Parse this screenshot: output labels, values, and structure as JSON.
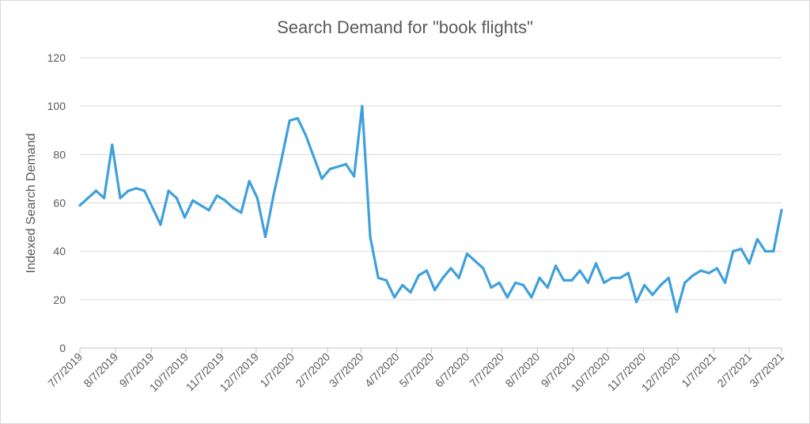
{
  "chart_data": {
    "type": "line",
    "title": "Search Demand for \"book flights\"",
    "xlabel": "",
    "ylabel": "Indexed Search Demand",
    "ylim": [
      0,
      120
    ],
    "yticks": [
      0,
      20,
      40,
      60,
      80,
      100,
      120
    ],
    "grid": true,
    "legend": "none",
    "x_tick_labels": [
      "7/7/2019",
      "8/7/2019",
      "9/7/2019",
      "10/7/2019",
      "11/7/2019",
      "12/7/2019",
      "1/7/2020",
      "2/7/2020",
      "3/7/2020",
      "4/7/2020",
      "5/7/2020",
      "6/7/2020",
      "7/7/2020",
      "8/7/2020",
      "9/7/2020",
      "10/7/2020",
      "11/7/2020",
      "12/7/2020",
      "1/7/2021",
      "2/7/2021",
      "3/7/2021"
    ],
    "x": [
      "2019-07-07",
      "2019-07-14",
      "2019-07-21",
      "2019-07-28",
      "2019-08-04",
      "2019-08-11",
      "2019-08-18",
      "2019-08-25",
      "2019-09-01",
      "2019-09-08",
      "2019-09-15",
      "2019-09-22",
      "2019-09-29",
      "2019-10-06",
      "2019-10-13",
      "2019-10-20",
      "2019-10-27",
      "2019-11-03",
      "2019-11-10",
      "2019-11-17",
      "2019-11-24",
      "2019-12-01",
      "2019-12-08",
      "2019-12-15",
      "2019-12-22",
      "2019-12-29",
      "2020-01-05",
      "2020-01-12",
      "2020-01-19",
      "2020-01-26",
      "2020-02-02",
      "2020-02-09",
      "2020-02-16",
      "2020-02-23",
      "2020-03-01",
      "2020-03-08",
      "2020-03-15",
      "2020-03-22",
      "2020-03-29",
      "2020-04-05",
      "2020-04-12",
      "2020-04-19",
      "2020-04-26",
      "2020-05-03",
      "2020-05-10",
      "2020-05-17",
      "2020-05-24",
      "2020-05-31",
      "2020-06-07",
      "2020-06-14",
      "2020-06-21",
      "2020-06-28",
      "2020-07-05",
      "2020-07-12",
      "2020-07-19",
      "2020-07-26",
      "2020-08-02",
      "2020-08-09",
      "2020-08-16",
      "2020-08-23",
      "2020-08-30",
      "2020-09-06",
      "2020-09-13",
      "2020-09-20",
      "2020-09-27",
      "2020-10-04",
      "2020-10-11",
      "2020-10-18",
      "2020-10-25",
      "2020-11-01",
      "2020-11-08",
      "2020-11-15",
      "2020-11-22",
      "2020-11-29",
      "2020-12-06",
      "2020-12-13",
      "2020-12-20",
      "2020-12-27",
      "2021-01-03",
      "2021-01-10",
      "2021-01-17",
      "2021-01-24",
      "2021-01-31",
      "2021-02-07",
      "2021-02-14",
      "2021-02-21",
      "2021-02-28",
      "2021-03-07"
    ],
    "series": [
      {
        "values": [
          59,
          62,
          65,
          62,
          84,
          62,
          65,
          66,
          65,
          58,
          51,
          65,
          62,
          54,
          61,
          59,
          57,
          63,
          61,
          58,
          56,
          69,
          62,
          46,
          63,
          78,
          94,
          95,
          88,
          79,
          70,
          74,
          75,
          76,
          71,
          100,
          46,
          29,
          28,
          21,
          26,
          23,
          30,
          32,
          24,
          29,
          33,
          29,
          39,
          36,
          33,
          25,
          27,
          21,
          27,
          26,
          21,
          29,
          25,
          34,
          28,
          28,
          32,
          27,
          35,
          27,
          29,
          29,
          31,
          19,
          26,
          22,
          26,
          29,
          15,
          27,
          30,
          32,
          31,
          33,
          27,
          40,
          41,
          35,
          45,
          40,
          40,
          57
        ],
        "color": "#3fa0dc"
      }
    ]
  }
}
